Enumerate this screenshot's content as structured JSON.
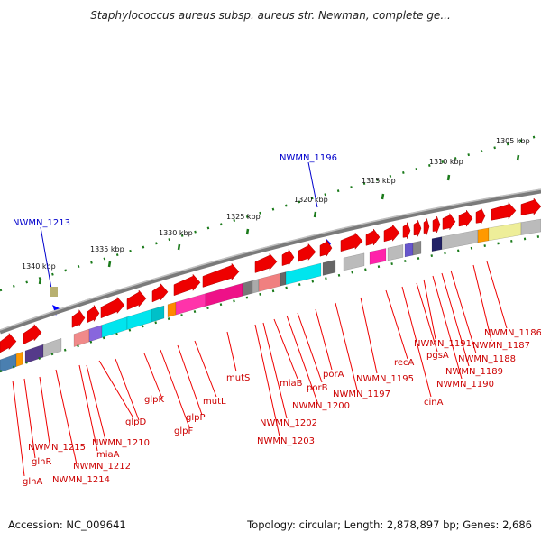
{
  "title": "Staphylococcus aureus subsp. aureus str. Newman, complete ge...",
  "footer": {
    "accession": "Accession: NC_009641",
    "topology": "Topology: circular; Length: 2,878,897 bp; Genes: 2,686"
  },
  "colors": {
    "gene_red": "#ee0000",
    "backbone_gray": "#888888",
    "tick_green": "#1a7a1a",
    "label_red": "#cc0000",
    "highlight_blue": "#0000cc"
  },
  "scale_labels": [
    "1340 kbp",
    "1335 kbp",
    "1330 kbp",
    "1325 kbp",
    "1320 kbp",
    "1315 kbp",
    "1310 kbp",
    "1305 kbp"
  ],
  "highlights": [
    "NWMN_1213",
    "NWMN_1196"
  ],
  "gene_labels": [
    "glnA",
    "glnR",
    "NWMN_1215",
    "NWMN_1214",
    "NWMN_1212",
    "miaA",
    "NWMN_1210",
    "glpD",
    "glpK",
    "glpF",
    "glpP",
    "mutL",
    "mutS",
    "NWMN_1203",
    "NWMN_1202",
    "miaB",
    "NWMN_1200",
    "porB",
    "porA",
    "NWMN_1197",
    "NWMN_1195",
    "recA",
    "cinA",
    "pgsA",
    "NWMN_1191",
    "NWMN_1190",
    "NWMN_1189",
    "NWMN_1188",
    "NWMN_1187",
    "NWMN_1186"
  ]
}
